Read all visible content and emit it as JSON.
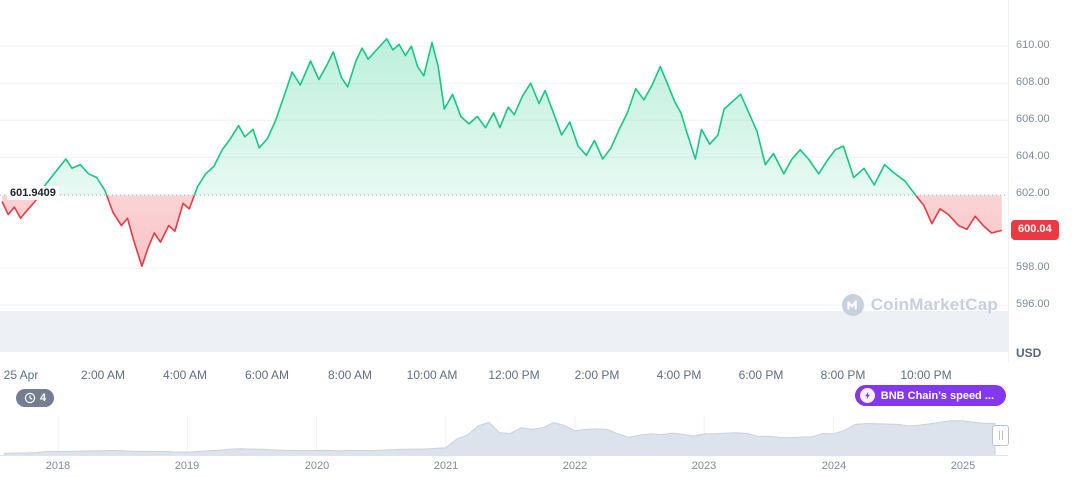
{
  "ui": {
    "baseline_label": "601.9409",
    "current_price": "600.04",
    "usd_label": "USD",
    "watermark_text": "CoinMarketCap",
    "history_badge_count": "4",
    "promo_button_label": "BNB Chain's speed ..."
  },
  "colors": {
    "up": "#16c784",
    "down": "#ea3943",
    "purple": "#8338ec",
    "axis_text": "#808a9d",
    "grid": "#f0f2f5",
    "volume_band": "#edf0f4",
    "navigator_fill": "#dde3ec",
    "navigator_stroke": "#c9d2de",
    "badge_gray": "#747e90",
    "baseline_line": "#aab3c5"
  },
  "chart_data": [
    {
      "type": "area",
      "title": "BNB/USD intraday price - 25 Apr",
      "xlabel": "",
      "ylabel": "USD",
      "x_unit": "hour_of_day",
      "x_range": [
        -0.5,
        24.0
      ],
      "ylim": [
        593.3,
        612.5
      ],
      "grid": true,
      "legend": false,
      "baseline_previous_close": 601.9409,
      "last_price": 600.04,
      "has_volume_band": true,
      "y_ticks": [
        610,
        608,
        606,
        604,
        602,
        598,
        596
      ],
      "y_tick_labels": [
        "610.00",
        "608.00",
        "606.00",
        "604.00",
        "602.00",
        "598.00",
        "596.00"
      ],
      "x_ticks": [
        {
          "h": 0,
          "label": "25 Apr"
        },
        {
          "h": 2,
          "label": "2:00 AM"
        },
        {
          "h": 4,
          "label": "4:00 AM"
        },
        {
          "h": 6,
          "label": "6:00 AM"
        },
        {
          "h": 8,
          "label": "8:00 AM"
        },
        {
          "h": 10,
          "label": "10:00 AM"
        },
        {
          "h": 12,
          "label": "12:00 PM"
        },
        {
          "h": 14,
          "label": "2:00 PM"
        },
        {
          "h": 16,
          "label": "4:00 PM"
        },
        {
          "h": 18,
          "label": "6:00 PM"
        },
        {
          "h": 20,
          "label": "8:00 PM"
        },
        {
          "h": 22,
          "label": "10:00 PM"
        }
      ],
      "points": [
        [
          -0.45,
          601.6
        ],
        [
          -0.3,
          600.9
        ],
        [
          -0.15,
          601.3
        ],
        [
          0.0,
          600.7
        ],
        [
          0.15,
          601.1
        ],
        [
          0.35,
          601.6
        ],
        [
          0.6,
          602.5
        ],
        [
          0.85,
          603.2
        ],
        [
          1.1,
          603.9
        ],
        [
          1.25,
          603.4
        ],
        [
          1.45,
          603.6
        ],
        [
          1.65,
          603.1
        ],
        [
          1.85,
          602.9
        ],
        [
          2.05,
          602.2
        ],
        [
          2.25,
          601.0
        ],
        [
          2.45,
          600.3
        ],
        [
          2.6,
          600.7
        ],
        [
          2.75,
          599.5
        ],
        [
          2.95,
          598.1
        ],
        [
          3.1,
          599.1
        ],
        [
          3.25,
          599.9
        ],
        [
          3.4,
          599.4
        ],
        [
          3.6,
          600.3
        ],
        [
          3.75,
          600.0
        ],
        [
          3.95,
          601.5
        ],
        [
          4.1,
          601.2
        ],
        [
          4.3,
          602.4
        ],
        [
          4.5,
          603.1
        ],
        [
          4.7,
          603.5
        ],
        [
          4.9,
          604.4
        ],
        [
          5.1,
          605.0
        ],
        [
          5.3,
          605.7
        ],
        [
          5.45,
          605.1
        ],
        [
          5.65,
          605.5
        ],
        [
          5.8,
          604.5
        ],
        [
          6.0,
          605.0
        ],
        [
          6.2,
          606.0
        ],
        [
          6.45,
          607.6
        ],
        [
          6.6,
          608.6
        ],
        [
          6.8,
          607.9
        ],
        [
          7.05,
          609.2
        ],
        [
          7.25,
          608.2
        ],
        [
          7.45,
          609.0
        ],
        [
          7.6,
          609.7
        ],
        [
          7.8,
          608.3
        ],
        [
          7.95,
          607.8
        ],
        [
          8.15,
          609.2
        ],
        [
          8.3,
          609.9
        ],
        [
          8.45,
          609.3
        ],
        [
          8.65,
          609.8
        ],
        [
          8.9,
          610.4
        ],
        [
          9.05,
          609.8
        ],
        [
          9.2,
          610.1
        ],
        [
          9.35,
          609.5
        ],
        [
          9.5,
          610.0
        ],
        [
          9.65,
          608.9
        ],
        [
          9.8,
          608.4
        ],
        [
          10.0,
          610.2
        ],
        [
          10.15,
          608.9
        ],
        [
          10.3,
          606.6
        ],
        [
          10.5,
          607.4
        ],
        [
          10.7,
          606.2
        ],
        [
          10.9,
          605.8
        ],
        [
          11.1,
          606.2
        ],
        [
          11.3,
          605.6
        ],
        [
          11.5,
          606.4
        ],
        [
          11.65,
          605.6
        ],
        [
          11.85,
          606.7
        ],
        [
          12.0,
          606.3
        ],
        [
          12.2,
          607.3
        ],
        [
          12.4,
          608.0
        ],
        [
          12.6,
          606.9
        ],
        [
          12.75,
          607.6
        ],
        [
          12.95,
          606.4
        ],
        [
          13.15,
          605.2
        ],
        [
          13.35,
          605.9
        ],
        [
          13.55,
          604.6
        ],
        [
          13.75,
          604.1
        ],
        [
          13.95,
          604.9
        ],
        [
          14.15,
          603.9
        ],
        [
          14.35,
          604.5
        ],
        [
          14.55,
          605.5
        ],
        [
          14.75,
          606.4
        ],
        [
          14.95,
          607.7
        ],
        [
          15.15,
          607.1
        ],
        [
          15.35,
          607.9
        ],
        [
          15.55,
          608.9
        ],
        [
          15.7,
          608.1
        ],
        [
          15.9,
          607.0
        ],
        [
          16.05,
          606.4
        ],
        [
          16.2,
          605.3
        ],
        [
          16.4,
          603.9
        ],
        [
          16.55,
          605.5
        ],
        [
          16.75,
          604.7
        ],
        [
          16.95,
          605.2
        ],
        [
          17.1,
          606.6
        ],
        [
          17.35,
          607.1
        ],
        [
          17.5,
          607.4
        ],
        [
          17.7,
          606.4
        ],
        [
          17.9,
          605.4
        ],
        [
          18.1,
          603.6
        ],
        [
          18.3,
          604.2
        ],
        [
          18.55,
          603.1
        ],
        [
          18.75,
          603.9
        ],
        [
          18.95,
          604.4
        ],
        [
          19.15,
          603.9
        ],
        [
          19.4,
          603.1
        ],
        [
          19.6,
          603.8
        ],
        [
          19.8,
          604.4
        ],
        [
          20.0,
          604.6
        ],
        [
          20.25,
          602.9
        ],
        [
          20.5,
          603.4
        ],
        [
          20.75,
          602.5
        ],
        [
          21.0,
          603.6
        ],
        [
          21.2,
          603.2
        ],
        [
          21.5,
          602.7
        ],
        [
          21.7,
          602.1
        ],
        [
          21.95,
          601.4
        ],
        [
          22.15,
          600.4
        ],
        [
          22.35,
          601.2
        ],
        [
          22.55,
          600.9
        ],
        [
          22.8,
          600.3
        ],
        [
          23.0,
          600.1
        ],
        [
          23.2,
          600.8
        ],
        [
          23.4,
          600.3
        ],
        [
          23.6,
          599.9
        ],
        [
          23.85,
          600.04
        ]
      ]
    },
    {
      "type": "area",
      "title": "BNB price history navigator (2018-2025)",
      "x_unit": "year",
      "x_range": [
        2017.55,
        2025.35
      ],
      "start_year": 2017.583,
      "step_years": 0.08333,
      "ylim": [
        0,
        720
      ],
      "y_scale_power": 0.6,
      "x_tick_labels": [
        "2018",
        "2019",
        "2020",
        "2021",
        "2022",
        "2023",
        "2024",
        "2025"
      ],
      "values": [
        1,
        2,
        2,
        4,
        9,
        9,
        10,
        12,
        13,
        14,
        16,
        14,
        11,
        10,
        10,
        9,
        6,
        6,
        9,
        15,
        19,
        29,
        33,
        29,
        27,
        21,
        17,
        16,
        14,
        17,
        19,
        13,
        16,
        17,
        16,
        19,
        22,
        27,
        29,
        29,
        36,
        42,
        180,
        270,
        520,
        640,
        330,
        310,
        470,
        420,
        470,
        630,
        540,
        380,
        420,
        430,
        420,
        300,
        220,
        270,
        300,
        280,
        320,
        290,
        250,
        300,
        305,
        315,
        330,
        310,
        240,
        242,
        218,
        212,
        225,
        230,
        310,
        300,
        385,
        570,
        600,
        590,
        580,
        570,
        520,
        550,
        590,
        650,
        700,
        690,
        640,
        610,
        600
      ]
    }
  ]
}
